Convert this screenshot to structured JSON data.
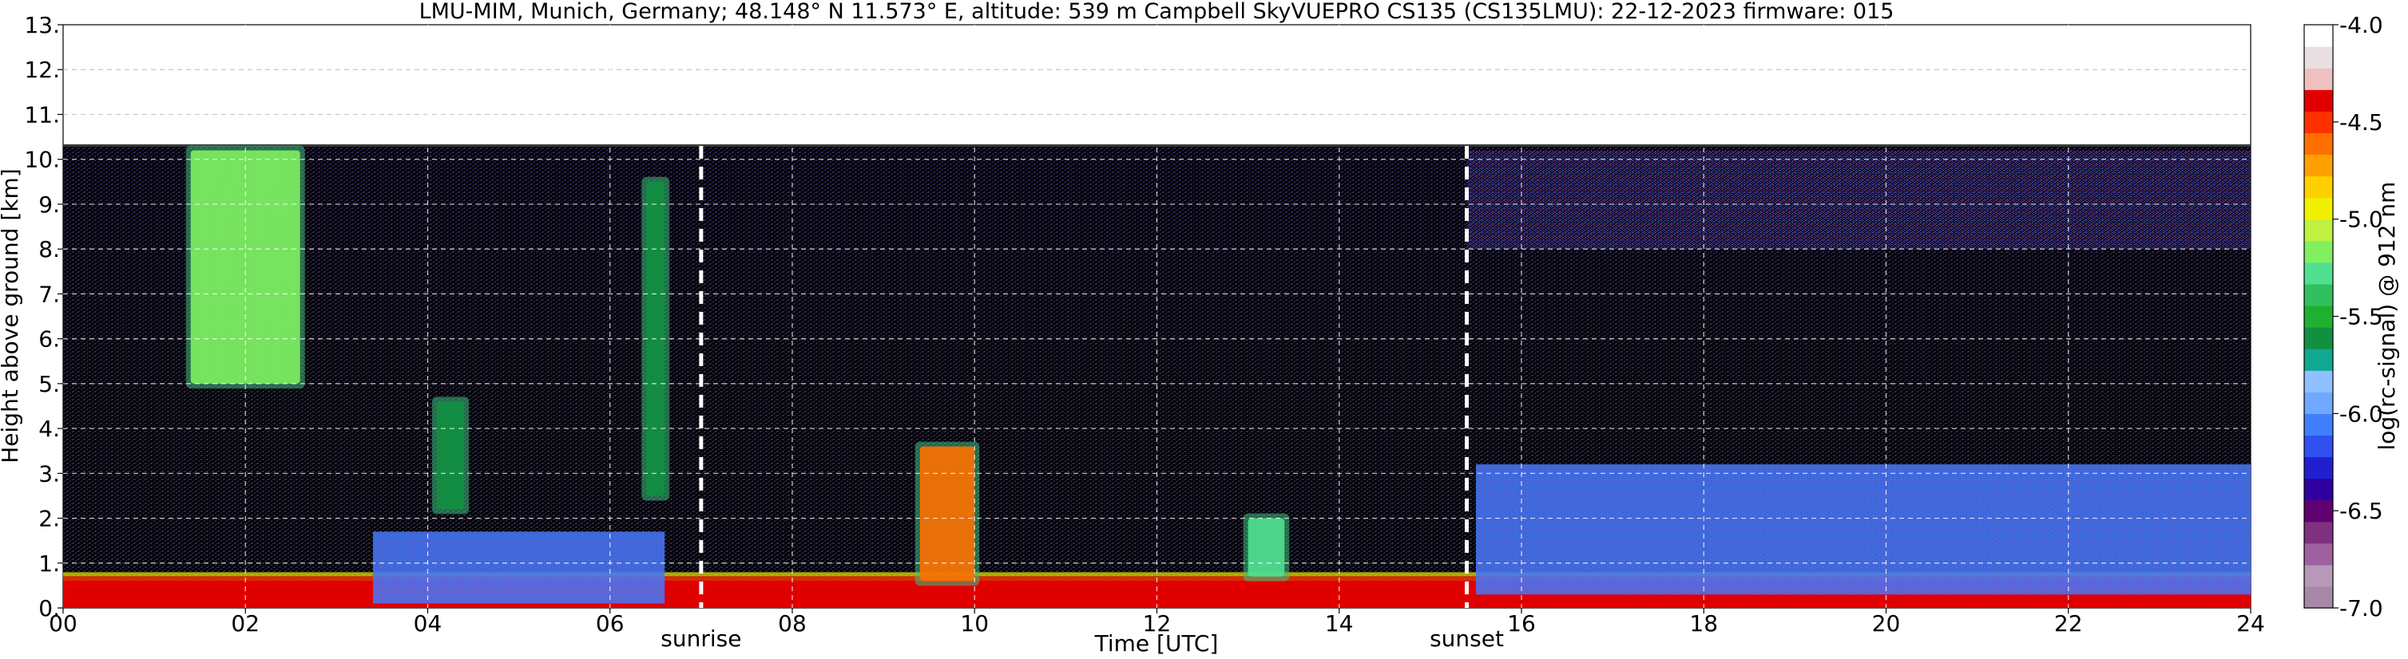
{
  "chart_data": {
    "type": "heatmap",
    "title": "LMU-MIM, Munich, Germany; 48.148° N 11.573° E, altitude: 539 m    Campbell SkyVUEPRO CS135 (CS135LMU): 22-12-2023    firmware: 015",
    "xlabel": "Time [UTC]",
    "ylabel": "Height above ground [km]",
    "xlim": [
      0,
      24
    ],
    "ylim": [
      0,
      13
    ],
    "x_ticks": [
      "00",
      "02",
      "04",
      "06",
      "08",
      "10",
      "12",
      "14",
      "16",
      "18",
      "20",
      "22",
      "24"
    ],
    "y_ticks": [
      "0.",
      "1.",
      "2.",
      "3.",
      "4.",
      "5.",
      "6.",
      "7.",
      "8.",
      "9.",
      "10.",
      "11.",
      "12.",
      "13."
    ],
    "grid": true,
    "data_top_km": 10.3,
    "colorbar": {
      "label": "log(rc-signal) @ 912 nm",
      "range": [
        -7.0,
        -4.0
      ],
      "ticks": [
        "-4.0",
        "-4.5",
        "-5.0",
        "-5.5",
        "-6.0",
        "-6.5",
        "-7.0"
      ],
      "colors": [
        "#a888a8",
        "#b898b8",
        "#a060a0",
        "#803080",
        "#600070",
        "#3000a0",
        "#2020d0",
        "#3050f0",
        "#4080ff",
        "#70a8ff",
        "#90c0ff",
        "#10a890",
        "#109040",
        "#20b030",
        "#30c060",
        "#50e090",
        "#80f060",
        "#c0f040",
        "#f0f000",
        "#ffd000",
        "#ffa000",
        "#ff7000",
        "#ff3000",
        "#e00000",
        "#f0c0c0",
        "#e8e0e0",
        "#ffffff"
      ]
    },
    "annotations": [
      {
        "text": "sunrise",
        "x": 7.0
      },
      {
        "text": "sunset",
        "x": 15.4
      }
    ],
    "features": [
      {
        "kind": "surface_layer",
        "x0": 0,
        "x1": 24,
        "y0": 0,
        "y1": 0.6,
        "level": -4.4
      },
      {
        "kind": "boundary_layer",
        "x0": 3.4,
        "x1": 6.6,
        "y0": 0.1,
        "y1": 1.7,
        "level": -6.1
      },
      {
        "kind": "boundary_layer",
        "x0": 15.5,
        "x1": 24,
        "y0": 0.3,
        "y1": 3.2,
        "level": -6.1
      },
      {
        "kind": "cloud",
        "x0": 1.4,
        "x1": 2.6,
        "y0": 5.0,
        "y1": 10.2,
        "level": -5.2
      },
      {
        "kind": "cloud",
        "x0": 4.1,
        "x1": 4.4,
        "y0": 2.2,
        "y1": 4.6,
        "level": -5.6
      },
      {
        "kind": "cloud",
        "x0": 9.4,
        "x1": 10.0,
        "y0": 0.6,
        "y1": 3.6,
        "level": -4.6
      },
      {
        "kind": "cloud",
        "x0": 13.0,
        "x1": 13.4,
        "y0": 0.7,
        "y1": 2.0,
        "level": -5.3
      },
      {
        "kind": "cloud",
        "x0": 6.4,
        "x1": 6.6,
        "y0": 2.5,
        "y1": 9.5,
        "level": -5.6
      },
      {
        "kind": "noise_band",
        "x0": 15.4,
        "x1": 24,
        "y0": 8.0,
        "y1": 10.2,
        "level": -6.3
      }
    ]
  }
}
